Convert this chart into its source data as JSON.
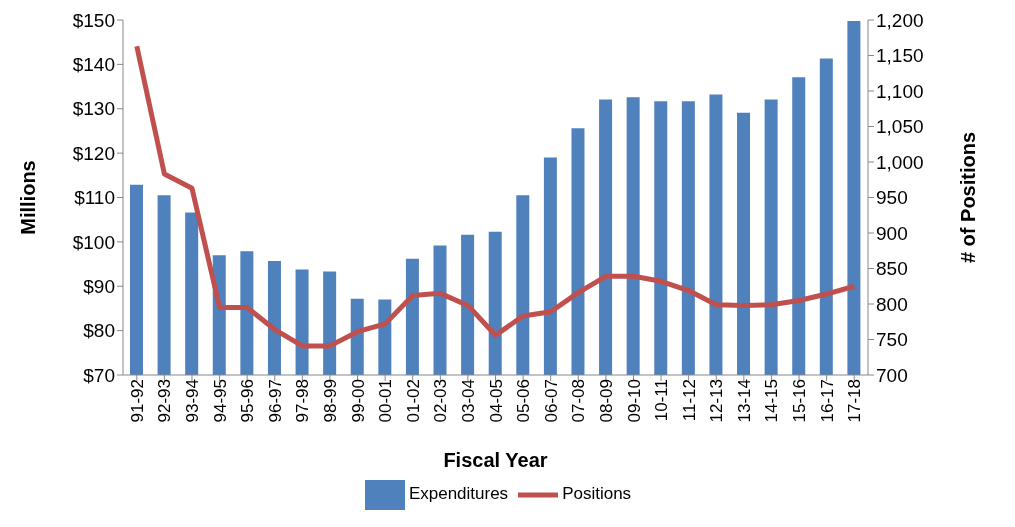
{
  "chart_data": {
    "type": "bar",
    "xlabel": "Fiscal Year",
    "ylabel": "Millions",
    "y2label": "# of Positions",
    "categories": [
      "91-92",
      "92-93",
      "93-94",
      "94-95",
      "95-96",
      "96-97",
      "97-98",
      "98-99",
      "99-00",
      "00-01",
      "01-02",
      "02-03",
      "03-04",
      "04-05",
      "05-06",
      "06-07",
      "07-08",
      "08-09",
      "09-10",
      "10-11",
      "11-12",
      "12-13",
      "13-14",
      "14-15",
      "15-16",
      "16-17",
      "17-18"
    ],
    "series": [
      {
        "name": "Expenditures",
        "color": "#4f81bd",
        "values": [
          112.9,
          110.5,
          106.6,
          97.0,
          97.9,
          95.7,
          93.8,
          93.3,
          87.2,
          87.0,
          96.2,
          99.2,
          101.6,
          102.3,
          110.5,
          119.0,
          125.6,
          132.1,
          132.6,
          131.7,
          131.7,
          133.2,
          129.1,
          132.1,
          137.1,
          141.3,
          149.8
        ]
      },
      {
        "name": "Positions",
        "type": "line",
        "axis": "y2",
        "color": "#c0504d",
        "values": [
          1163,
          983,
          963,
          795,
          795,
          764,
          741,
          741,
          761,
          772,
          812,
          815,
          798,
          756,
          783,
          789,
          816,
          839,
          839,
          832,
          819,
          799,
          798,
          799,
          805,
          814,
          825
        ]
      }
    ],
    "ylim": [
      70,
      150
    ],
    "yticks": [
      {
        "value": 70,
        "label": "$70"
      },
      {
        "value": 80,
        "label": "$80"
      },
      {
        "value": 90,
        "label": "$90"
      },
      {
        "value": 100,
        "label": "$100"
      },
      {
        "value": 110,
        "label": "$110"
      },
      {
        "value": 120,
        "label": "$120"
      },
      {
        "value": 130,
        "label": "$130"
      },
      {
        "value": 140,
        "label": "$140"
      },
      {
        "value": 150,
        "label": "$150"
      }
    ],
    "y2lim": [
      700,
      1200
    ],
    "y2ticks": [
      700,
      750,
      800,
      850,
      900,
      950,
      {
        "value": 1000,
        "label": "1,000"
      },
      {
        "value": 1050,
        "label": "1,050"
      },
      {
        "value": 1100,
        "label": "1,100"
      },
      {
        "value": 1150,
        "label": "1,150"
      },
      {
        "value": 1200,
        "label": "1,200"
      }
    ],
    "grid": false,
    "legend": "bottom",
    "marker": "none",
    "line_style": "solid"
  }
}
